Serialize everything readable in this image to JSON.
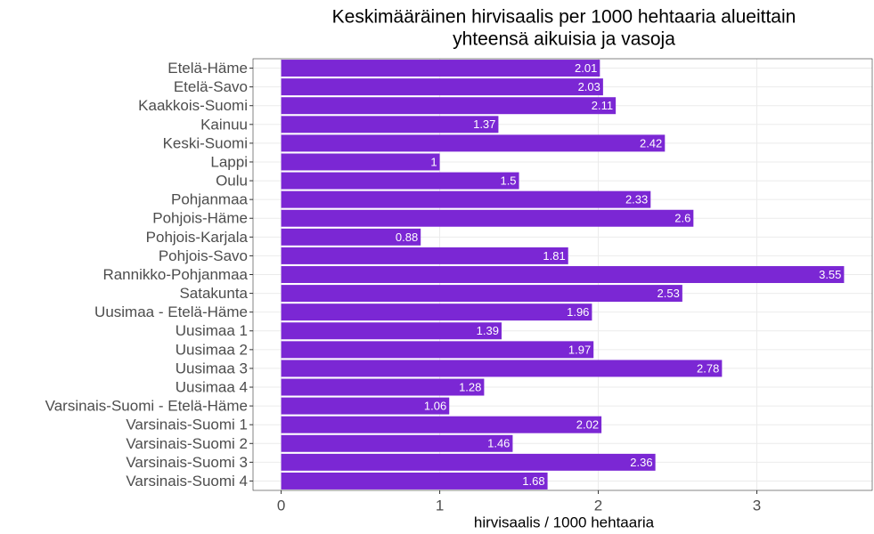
{
  "chart_data": {
    "type": "barh",
    "title": [
      "Keskimääräinen hirvisaalis per 1000 hehtaaria alueittain",
      "yhteensä aikuisia ja vasoja"
    ],
    "xlabel": "hirvisaalis / 1000 hehtaaria",
    "categories": [
      "Etelä-Häme",
      "Etelä-Savo",
      "Kaakkois-Suomi",
      "Kainuu",
      "Keski-Suomi",
      "Lappi",
      "Oulu",
      "Pohjanmaa",
      "Pohjois-Häme",
      "Pohjois-Karjala",
      "Pohjois-Savo",
      "Rannikko-Pohjanmaa",
      "Satakunta",
      "Uusimaa - Etelä-Häme",
      "Uusimaa 1",
      "Uusimaa 2",
      "Uusimaa 3",
      "Uusimaa 4",
      "Varsinais-Suomi - Etelä-Häme",
      "Varsinais-Suomi 1",
      "Varsinais-Suomi 2",
      "Varsinais-Suomi 3",
      "Varsinais-Suomi 4"
    ],
    "values": [
      2.01,
      2.03,
      2.11,
      1.37,
      2.42,
      1,
      1.5,
      2.33,
      2.6,
      0.88,
      1.81,
      3.55,
      2.53,
      1.96,
      1.39,
      1.97,
      2.78,
      1.28,
      1.06,
      2.02,
      1.46,
      2.36,
      1.68
    ],
    "color": "#7b27d4",
    "xlim": [
      -0.1775,
      3.7275
    ],
    "xticks": [
      0,
      1,
      2,
      3
    ],
    "grid": true
  }
}
